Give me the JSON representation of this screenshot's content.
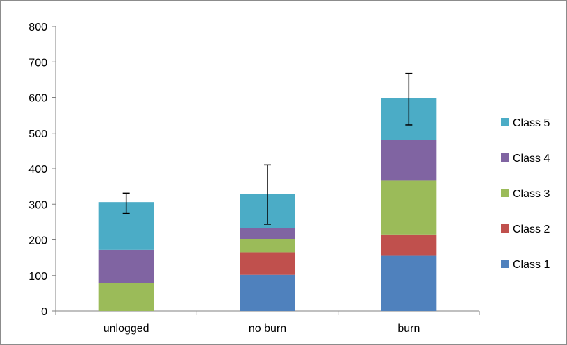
{
  "chart_data": {
    "type": "bar",
    "stacked": true,
    "categories": [
      "unlogged",
      "no burn",
      "burn"
    ],
    "series": [
      {
        "name": "Class 1",
        "color": "#4F81BD",
        "values": [
          0,
          102,
          155
        ]
      },
      {
        "name": "Class 2",
        "color": "#C0504D",
        "values": [
          0,
          63,
          60
        ]
      },
      {
        "name": "Class 3",
        "color": "#9BBB59",
        "values": [
          79,
          37,
          151
        ]
      },
      {
        "name": "Class 4",
        "color": "#8064A2",
        "values": [
          93,
          32,
          115
        ]
      },
      {
        "name": "Class 5",
        "color": "#4BACC6",
        "values": [
          134,
          95,
          118
        ]
      }
    ],
    "totals": [
      306,
      329,
      599
    ],
    "error_bars": [
      {
        "low": 274,
        "high": 331
      },
      {
        "low": 244,
        "high": 411
      },
      {
        "low": 523,
        "high": 668
      }
    ],
    "ylim": [
      0,
      800
    ],
    "yticks": [
      "0",
      "100",
      "200",
      "300",
      "400",
      "500",
      "600",
      "700",
      "800"
    ],
    "grid": false,
    "legend_position": "right",
    "legend_order": [
      "Class 5",
      "Class 4",
      "Class 3",
      "Class 2",
      "Class 1"
    ]
  }
}
